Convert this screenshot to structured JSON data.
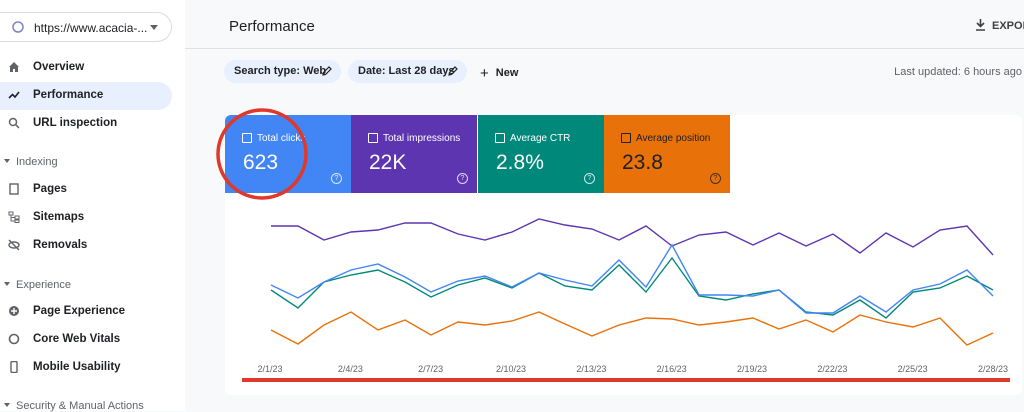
{
  "sidebar": {
    "site": "https://www.acacia-...",
    "nav": [
      "Overview",
      "Performance",
      "URL inspection"
    ],
    "sections": [
      {
        "title": "Indexing",
        "items": [
          "Pages",
          "Sitemaps",
          "Removals"
        ]
      },
      {
        "title": "Experience",
        "items": [
          "Page Experience",
          "Core Web Vitals",
          "Mobile Usability"
        ]
      },
      {
        "title": "Security & Manual Actions"
      }
    ]
  },
  "header": {
    "title": "Performance",
    "export": "EXPOR"
  },
  "filters": {
    "chips": [
      "Search type: Web",
      "Date: Last 28 days"
    ],
    "new": "New",
    "last_updated": "Last updated: 6 hours ago"
  },
  "metrics": [
    {
      "label": "Total clicks",
      "value": 623
    },
    {
      "label": "Total impressions",
      "value": "22K"
    },
    {
      "label": "Average CTR",
      "value": "2.8%"
    },
    {
      "label": "Average position",
      "value": 23.8
    }
  ],
  "chart": {
    "x_labels": [
      "2/1/23",
      "2/4/23",
      "2/7/23",
      "2/10/23",
      "2/13/23",
      "2/16/23",
      "2/19/23",
      "2/22/23",
      "2/25/23",
      "2/28/23"
    ]
  }
}
